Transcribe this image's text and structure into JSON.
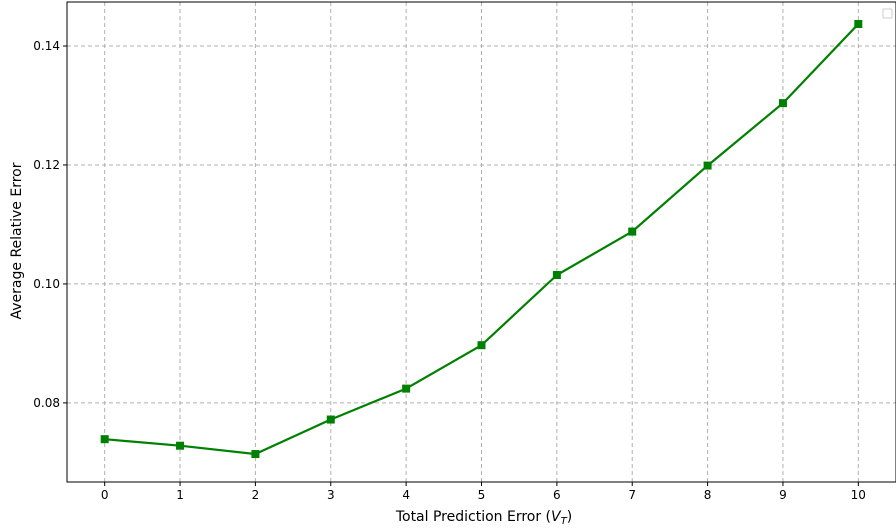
{
  "chart_data": {
    "type": "line",
    "title": "",
    "xlabel": "Total Prediction Error (V_T)",
    "xlabel_parts": {
      "prefix": "Total Prediction Error (",
      "var": "V",
      "sub": "T",
      "suffix": ")"
    },
    "ylabel": "Average Relative Error",
    "x": [
      0,
      1,
      2,
      3,
      4,
      5,
      6,
      7,
      8,
      9,
      10
    ],
    "series": [
      {
        "values": [
          0.0739,
          0.0728,
          0.0714,
          0.0772,
          0.0824,
          0.0897,
          0.1015,
          0.1088,
          0.1199,
          0.1304,
          0.1437
        ],
        "color": "#008000",
        "marker": "square"
      }
    ],
    "xlim": [
      -0.5,
      10.5
    ],
    "ylim": [
      0.0667,
      0.1474
    ],
    "xticks": [
      0,
      1,
      2,
      3,
      4,
      5,
      6,
      7,
      8,
      9,
      10
    ],
    "xtick_labels": [
      "0",
      "1",
      "2",
      "3",
      "4",
      "5",
      "6",
      "7",
      "8",
      "9",
      "10"
    ],
    "yticks": [
      0.08,
      0.1,
      0.12,
      0.14
    ],
    "ytick_labels": [
      "0.08",
      "0.10",
      "0.12",
      "0.14"
    ],
    "grid": true,
    "legend": {
      "placement": "top-right",
      "entries": []
    }
  }
}
